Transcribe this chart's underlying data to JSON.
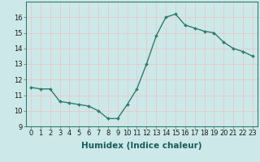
{
  "x": [
    0,
    1,
    2,
    3,
    4,
    5,
    6,
    7,
    8,
    9,
    10,
    11,
    12,
    13,
    14,
    15,
    16,
    17,
    18,
    19,
    20,
    21,
    22,
    23
  ],
  "y": [
    11.5,
    11.4,
    11.4,
    10.6,
    10.5,
    10.4,
    10.3,
    10.0,
    9.5,
    9.5,
    10.4,
    11.4,
    13.0,
    14.8,
    16.0,
    16.2,
    15.5,
    15.3,
    15.1,
    15.0,
    14.4,
    14.0,
    13.8,
    13.5
  ],
  "line_color": "#2e7d6e",
  "marker": "D",
  "marker_size": 2.0,
  "line_width": 1.0,
  "xlabel": "Humidex (Indice chaleur)",
  "xlabel_fontsize": 7.5,
  "xlim": [
    -0.5,
    23.5
  ],
  "ylim": [
    9,
    17
  ],
  "yticks": [
    9,
    10,
    11,
    12,
    13,
    14,
    15,
    16
  ],
  "xticks": [
    0,
    1,
    2,
    3,
    4,
    5,
    6,
    7,
    8,
    9,
    10,
    11,
    12,
    13,
    14,
    15,
    16,
    17,
    18,
    19,
    20,
    21,
    22,
    23
  ],
  "xtick_labels": [
    "0",
    "1",
    "2",
    "3",
    "4",
    "5",
    "6",
    "7",
    "8",
    "9",
    "10",
    "11",
    "12",
    "13",
    "14",
    "15",
    "16",
    "17",
    "18",
    "19",
    "20",
    "21",
    "22",
    "23"
  ],
  "tick_fontsize": 6.0,
  "background_color": "#cce8e8",
  "grid_color": "#e8c8c8",
  "grid_linewidth": 0.6
}
